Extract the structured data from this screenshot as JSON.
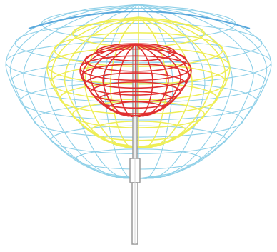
{
  "diagram": {
    "subject": "antenna-radiation-pattern",
    "background_color": "#ffffff",
    "lobes": [
      {
        "name": "outer-lobe",
        "color": "#8fd0e8",
        "top_color": "#5aa8dc"
      },
      {
        "name": "middle-lobe",
        "color": "#eeee55"
      },
      {
        "name": "inner-lobe",
        "color": "#e03030"
      }
    ],
    "antenna": {
      "color": "#9a9a9a",
      "highlight_color": "#d8d8d8"
    }
  }
}
